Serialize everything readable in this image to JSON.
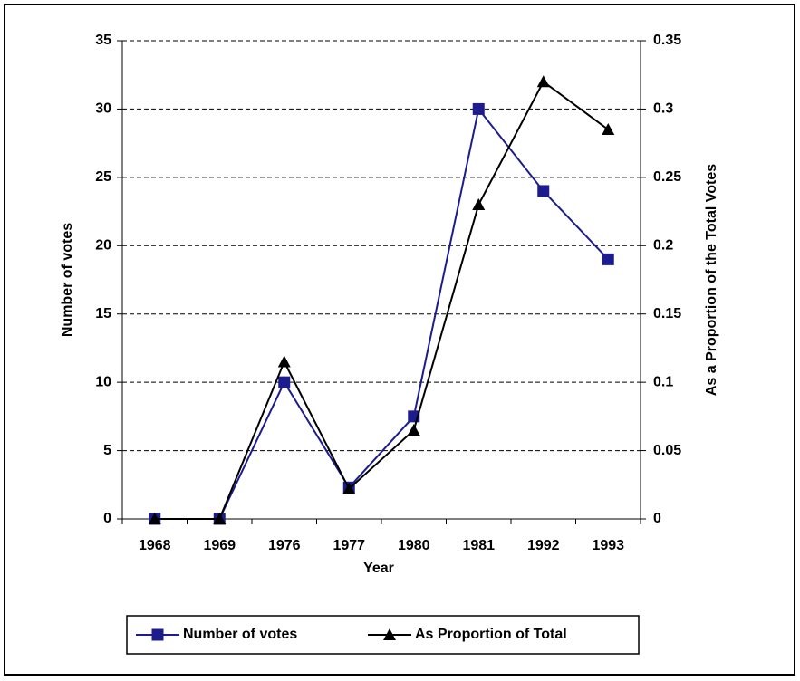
{
  "chart_data": {
    "type": "line",
    "x_label": "Year",
    "y_label": "Number of votes",
    "y2_label": "As a Proportion of the Total Votes",
    "categories": [
      "1968",
      "1969",
      "1976",
      "1977",
      "1980",
      "1981",
      "1992",
      "1993"
    ],
    "series": [
      {
        "name": "Number of votes",
        "color": "#1c1c8e",
        "marker": "square",
        "values": [
          0,
          0,
          10,
          2.3,
          7.5,
          30,
          24,
          19
        ]
      },
      {
        "name": "As Proportion of Total",
        "color": "#000000",
        "marker": "triangle",
        "axis": "y2",
        "values": [
          0,
          0,
          0.115,
          0.022,
          0.065,
          0.23,
          0.32,
          0.285
        ]
      }
    ],
    "ylim": [
      0,
      35
    ],
    "yticks": [
      0,
      5,
      10,
      15,
      20,
      25,
      30,
      35
    ],
    "y2lim": [
      0,
      0.35
    ],
    "y2ticks": [
      0,
      0.05,
      0.1,
      0.15,
      0.2,
      0.25,
      0.3,
      0.35
    ],
    "grid": true,
    "legend": "bottom"
  }
}
